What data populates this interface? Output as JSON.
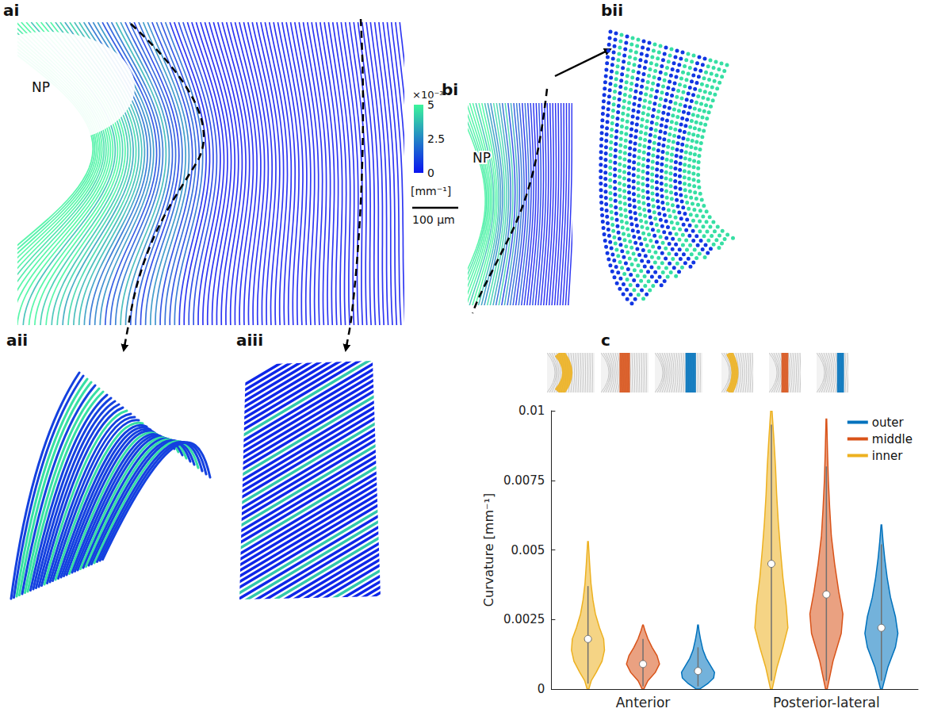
{
  "chart_data": {
    "type": "violin",
    "ylabel": "Curvature [mm⁻¹]",
    "ylim": [
      0,
      0.01
    ],
    "yticks": [
      0,
      0.0025,
      0.005,
      0.0075,
      0.01
    ],
    "categories": [
      "Anterior",
      "Posterior-lateral"
    ],
    "legend": "top-right",
    "series": [
      {
        "name": "inner",
        "color": "#EDB120",
        "violins": [
          {
            "median": 0.0018,
            "whisker": [
              0.0002,
              0.0037
            ],
            "profile": {
              "y": [
                0,
                0.0003,
                0.0006,
                0.001,
                0.0014,
                0.0018,
                0.0022,
                0.0027,
                0.0032,
                0.0038,
                0.0045,
                0.0053
              ],
              "density": [
                0.05,
                0.2,
                0.5,
                0.85,
                1,
                0.95,
                0.7,
                0.45,
                0.3,
                0.18,
                0.1,
                0.02
              ]
            }
          },
          {
            "median": 0.0045,
            "whisker": [
              0.0003,
              0.0095
            ],
            "profile": {
              "y": [
                0,
                0.0008,
                0.0015,
                0.0022,
                0.003,
                0.004,
                0.005,
                0.006,
                0.007,
                0.008,
                0.009,
                0.01
              ],
              "density": [
                0.05,
                0.35,
                0.7,
                1,
                0.9,
                0.7,
                0.55,
                0.42,
                0.32,
                0.25,
                0.15,
                0.04
              ]
            }
          }
        ]
      },
      {
        "name": "middle",
        "color": "#D95319",
        "violins": [
          {
            "median": 0.0009,
            "whisker": [
              0.0001,
              0.0018
            ],
            "profile": {
              "y": [
                0,
                0.0003,
                0.0006,
                0.0009,
                0.0012,
                0.0015,
                0.0018,
                0.0021,
                0.0023
              ],
              "density": [
                0.05,
                0.3,
                0.75,
                1,
                0.85,
                0.55,
                0.3,
                0.12,
                0.02
              ]
            }
          },
          {
            "median": 0.0034,
            "whisker": [
              0.0003,
              0.008
            ],
            "profile": {
              "y": [
                0,
                0.001,
                0.002,
                0.0027,
                0.0035,
                0.0045,
                0.0055,
                0.0065,
                0.0075,
                0.0085,
                0.0097
              ],
              "density": [
                0.05,
                0.4,
                0.9,
                1,
                0.75,
                0.5,
                0.3,
                0.2,
                0.12,
                0.07,
                0.02
              ]
            }
          }
        ]
      },
      {
        "name": "outer",
        "color": "#0072BD",
        "violins": [
          {
            "median": 0.00065,
            "whisker": [
              0.0001,
              0.0015
            ],
            "profile": {
              "y": [
                0,
                0.0002,
                0.0004,
                0.0006,
                0.0008,
                0.0011,
                0.0014,
                0.0018,
                0.0021,
                0.0023
              ],
              "density": [
                0.1,
                0.6,
                0.95,
                1,
                0.8,
                0.5,
                0.3,
                0.15,
                0.06,
                0.02
              ]
            }
          },
          {
            "median": 0.0022,
            "whisker": [
              0.0003,
              0.0052
            ],
            "profile": {
              "y": [
                0,
                0.0008,
                0.0015,
                0.002,
                0.0026,
                0.0033,
                0.004,
                0.0047,
                0.0053,
                0.0059
              ],
              "density": [
                0.05,
                0.4,
                0.85,
                1,
                0.85,
                0.55,
                0.35,
                0.2,
                0.1,
                0.02
              ]
            }
          }
        ]
      }
    ]
  },
  "figure": {
    "panel_labels": [
      "ai",
      "aii",
      "aiii",
      "bi",
      "bii",
      "c"
    ],
    "region_label": "NP",
    "colorbar": {
      "range": [
        0,
        5
      ],
      "ticks": [
        0,
        2.5,
        5
      ],
      "multiplier": "×10⁻³",
      "unit": "[mm⁻¹]",
      "colors": [
        "#0a14f0",
        "#3cf59b"
      ]
    },
    "scale_bar": "100 µm"
  }
}
